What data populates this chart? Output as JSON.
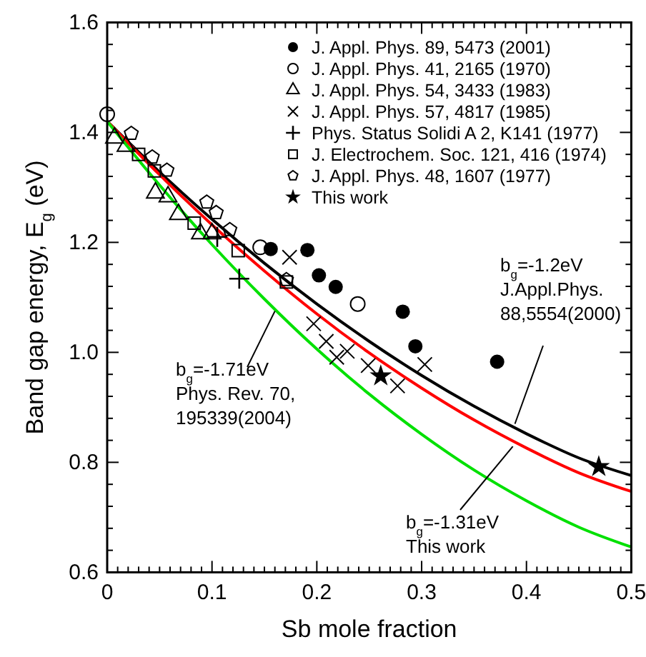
{
  "chart_data": {
    "type": "scatter",
    "xlabel": "Sb mole fraction",
    "ylabel": "Band gap energy, E$_{g}$ (eV)",
    "xlim": [
      0,
      0.5
    ],
    "ylim": [
      0.6,
      1.6
    ],
    "xticks": [
      0,
      {
        "value": 0.01,
        "label": null
      },
      {
        "value": 0.02,
        "label": null
      },
      {
        "value": 0.03,
        "label": null
      },
      {
        "value": 0.04,
        "label": null
      },
      {
        "value": 0.05,
        "label": null
      },
      {
        "value": 0.06,
        "label": null
      },
      {
        "value": 0.07,
        "label": null
      },
      {
        "value": 0.08,
        "label": null
      },
      {
        "value": 0.09,
        "label": null
      },
      {
        "value": 0.1,
        "label": "0.1"
      },
      {
        "value": 0.11,
        "label": null
      },
      {
        "value": 0.12,
        "label": null
      },
      {
        "value": 0.13,
        "label": null
      },
      {
        "value": 0.14,
        "label": null
      },
      {
        "value": 0.15,
        "label": null
      },
      {
        "value": 0.16,
        "label": null
      },
      {
        "value": 0.17,
        "label": null
      },
      {
        "value": 0.18,
        "label": null
      },
      {
        "value": 0.19,
        "label": null
      },
      {
        "value": 0.2,
        "label": "0.2"
      },
      {
        "value": 0.21,
        "label": null
      },
      {
        "value": 0.22,
        "label": null
      },
      {
        "value": 0.23,
        "label": null
      },
      {
        "value": 0.24,
        "label": null
      },
      {
        "value": 0.25,
        "label": null
      },
      {
        "value": 0.26,
        "label": null
      },
      {
        "value": 0.27,
        "label": null
      },
      {
        "value": 0.28,
        "label": null
      },
      {
        "value": 0.29,
        "label": null
      },
      {
        "value": 0.3,
        "label": "0.3"
      },
      {
        "value": 0.31,
        "label": null
      },
      {
        "value": 0.32,
        "label": null
      },
      {
        "value": 0.33,
        "label": null
      },
      {
        "value": 0.34,
        "label": null
      },
      {
        "value": 0.35,
        "label": null
      },
      {
        "value": 0.36,
        "label": null
      },
      {
        "value": 0.37,
        "label": null
      },
      {
        "value": 0.38,
        "label": null
      },
      {
        "value": 0.39,
        "label": null
      },
      {
        "value": 0.4,
        "label": "0.4"
      },
      {
        "value": 0.41,
        "label": null
      },
      {
        "value": 0.42,
        "label": null
      },
      {
        "value": 0.43,
        "label": null
      },
      {
        "value": 0.44,
        "label": null
      },
      {
        "value": 0.45,
        "label": null
      },
      {
        "value": 0.46,
        "label": null
      },
      {
        "value": 0.47,
        "label": null
      },
      {
        "value": 0.48,
        "label": null
      },
      {
        "value": 0.49,
        "label": null
      },
      {
        "value": 0.5,
        "label": "0.5"
      }
    ],
    "yticks": [
      {
        "value": 0.6,
        "label": "0.6"
      },
      {
        "value": 0.64,
        "label": null
      },
      {
        "value": 0.68,
        "label": null
      },
      {
        "value": 0.72,
        "label": null
      },
      {
        "value": 0.76,
        "label": null
      },
      {
        "value": 0.8,
        "label": "0.8"
      },
      {
        "value": 0.84,
        "label": null
      },
      {
        "value": 0.88,
        "label": null
      },
      {
        "value": 0.92,
        "label": null
      },
      {
        "value": 0.96,
        "label": null
      },
      {
        "value": 1.0,
        "label": "1.0"
      },
      {
        "value": 1.04,
        "label": null
      },
      {
        "value": 1.08,
        "label": null
      },
      {
        "value": 1.12,
        "label": null
      },
      {
        "value": 1.16,
        "label": null
      },
      {
        "value": 1.2,
        "label": "1.2"
      },
      {
        "value": 1.24,
        "label": null
      },
      {
        "value": 1.28,
        "label": null
      },
      {
        "value": 1.32,
        "label": null
      },
      {
        "value": 1.36,
        "label": null
      },
      {
        "value": 1.4,
        "label": "1.4"
      },
      {
        "value": 1.44,
        "label": null
      },
      {
        "value": 1.48,
        "label": null
      },
      {
        "value": 1.52,
        "label": null
      },
      {
        "value": 1.56,
        "label": null
      },
      {
        "value": 1.6,
        "label": "1.6"
      }
    ],
    "grid": false,
    "legend": "top right",
    "series": [
      {
        "name": "J. Appl. Phys. 89, 5473 (2001)",
        "color": "#000000",
        "marker": "circle",
        "x": [
          0.156,
          0.191,
          0.202,
          0.218,
          0.282,
          0.294,
          0.372
        ],
        "values": [
          1.188,
          1.186,
          1.14,
          1.119,
          1.074,
          1.011,
          0.983
        ]
      },
      {
        "name": "J. Appl. Phys. 41, 2165 (1970)",
        "color": "#000000",
        "marker": "circle-open",
        "x": [
          0.0,
          0.146,
          0.239
        ],
        "values": [
          1.433,
          1.191,
          1.088
        ]
      },
      {
        "name": "J. Appl. Phys. 54, 3433 (1983)",
        "color": "#000000",
        "marker": "triangle",
        "x": [
          0.007,
          0.018,
          0.046,
          0.058,
          0.068,
          0.089,
          0.1
        ],
        "values": [
          1.39,
          1.375,
          1.29,
          1.283,
          1.251,
          1.216,
          1.216
        ]
      },
      {
        "name": "J. Appl. Phys. 57, 4817 (1985)",
        "color": "#000000",
        "marker": "cross",
        "x": [
          0.174,
          0.197,
          0.209,
          0.219,
          0.229,
          0.249,
          0.277,
          0.303
        ],
        "values": [
          1.173,
          1.052,
          1.02,
          0.991,
          1.002,
          0.976,
          0.939,
          0.978
        ]
      },
      {
        "name": "Phys. Status Solidi A 2, K141 (1977)",
        "color": "#000000",
        "marker": "plus",
        "x": [
          0.105,
          0.126
        ],
        "values": [
          1.21,
          1.134
        ]
      },
      {
        "name": "J. Electrochem. Soc. 121, 416 (1974)",
        "color": "#000000",
        "marker": "square",
        "x": [
          0.03,
          0.045,
          0.083,
          0.125,
          0.171
        ],
        "values": [
          1.36,
          1.33,
          1.235,
          1.185,
          1.128
        ]
      },
      {
        "name": "J. Appl. Phys. 48, 1607 (1977)",
        "color": "#000000",
        "x": [
          0.023,
          0.043,
          0.057,
          0.095,
          0.104,
          0.117,
          0.171
        ],
        "values": [
          1.398,
          1.355,
          1.331,
          1.273,
          1.254,
          1.223,
          1.132
        ]
      },
      {
        "name": "This work",
        "color": "#000000",
        "marker": "star",
        "x": [
          0.261,
          0.469
        ],
        "values": [
          0.957,
          0.792
        ]
      },
      {
        "type": "line",
        "color": "#000000",
        "x": [
          0,
          0.05,
          0.1,
          0.15,
          0.2,
          0.25,
          0.3,
          0.35,
          0.4,
          0.45,
          0.5
        ],
        "values": [
          1.42,
          1.328,
          1.242,
          1.162,
          1.088,
          1.02,
          0.958,
          0.902,
          0.852,
          0.808,
          0.776
        ]
      },
      {
        "type": "line",
        "color": "#ff0000",
        "x": [
          0,
          0.05,
          0.1,
          0.15,
          0.2,
          0.25,
          0.3,
          0.35,
          0.4,
          0.45,
          0.5
        ],
        "values": [
          1.42,
          1.323,
          1.232,
          1.148,
          1.07,
          0.999,
          0.935,
          0.877,
          0.826,
          0.781,
          0.747
        ]
      },
      {
        "type": "line",
        "color": "#00e000",
        "x": [
          0,
          0.05,
          0.1,
          0.15,
          0.2,
          0.25,
          0.3,
          0.35,
          0.4,
          0.45,
          0.5
        ],
        "values": [
          1.42,
          1.304,
          1.196,
          1.097,
          1.006,
          0.924,
          0.851,
          0.786,
          0.73,
          0.682,
          0.646
        ]
      }
    ],
    "annotations": [
      {
        "text": "b$_{g}$=-1.2eV\nJ.Appl.Phys.\n88,5554(2000)",
        "x": 0.389,
        "y": 0.87
      },
      {
        "text": "b$_{g}$=-1.31eV\nThis work",
        "x": 0.387,
        "y": 0.829
      },
      {
        "text": "b$_{g}$=-1.71eV\nPhys. Rev. 70,\n195339(2004)",
        "x": 0.16,
        "y": 1.075
      }
    ]
  }
}
